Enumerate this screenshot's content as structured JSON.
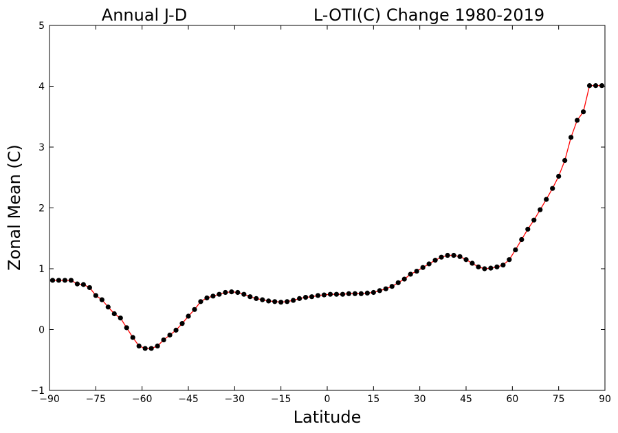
{
  "chart_data": {
    "type": "line",
    "title_left": "Annual J-D",
    "title_right": "L-OTI(C) Change 1980-2019",
    "xlabel": "Latitude",
    "ylabel": "Zonal Mean (C)",
    "xlim": [
      -90,
      90
    ],
    "ylim": [
      -1,
      5
    ],
    "xticks": [
      -90,
      -75,
      -60,
      -45,
      -30,
      -15,
      0,
      15,
      30,
      45,
      60,
      75,
      90
    ],
    "xtick_labels": [
      "−90",
      "−75",
      "−60",
      "−45",
      "−30",
      "−15",
      "0",
      "15",
      "30",
      "45",
      "60",
      "75",
      "90"
    ],
    "yticks": [
      -1,
      0,
      1,
      2,
      3,
      4,
      5
    ],
    "ytick_labels": [
      "−1",
      "0",
      "1",
      "2",
      "3",
      "4",
      "5"
    ],
    "grid": false,
    "line_color": "#ff0000",
    "marker_color": "#000000",
    "series": [
      {
        "x": [
          -89,
          -87,
          -85,
          -83,
          -81,
          -79,
          -77,
          -75,
          -73,
          -71,
          -69,
          -67,
          -65,
          -63,
          -61,
          -59,
          -57,
          -55,
          -53,
          -51,
          -49,
          -47,
          -45,
          -43,
          -41,
          -39,
          -37,
          -35,
          -33,
          -31,
          -29,
          -27,
          -25,
          -23,
          -21,
          -19,
          -17,
          -15,
          -13,
          -11,
          -9,
          -7,
          -5,
          -3,
          -1,
          1,
          3,
          5,
          7,
          9,
          11,
          13,
          15,
          17,
          19,
          21,
          23,
          25,
          27,
          29,
          31,
          33,
          35,
          37,
          39,
          41,
          43,
          45,
          47,
          49,
          51,
          53,
          55,
          57,
          59,
          61,
          63,
          65,
          67,
          69,
          71,
          73,
          75,
          77,
          79,
          81,
          83,
          85,
          87,
          89
        ],
        "y": [
          0.81,
          0.81,
          0.81,
          0.81,
          0.75,
          0.74,
          0.69,
          0.56,
          0.49,
          0.37,
          0.26,
          0.19,
          0.03,
          -0.13,
          -0.27,
          -0.31,
          -0.31,
          -0.27,
          -0.17,
          -0.09,
          -0.01,
          0.1,
          0.22,
          0.33,
          0.46,
          0.52,
          0.55,
          0.58,
          0.61,
          0.62,
          0.61,
          0.58,
          0.54,
          0.51,
          0.49,
          0.47,
          0.46,
          0.45,
          0.46,
          0.48,
          0.51,
          0.53,
          0.54,
          0.56,
          0.57,
          0.58,
          0.58,
          0.58,
          0.59,
          0.59,
          0.59,
          0.6,
          0.61,
          0.64,
          0.67,
          0.71,
          0.77,
          0.83,
          0.91,
          0.96,
          1.02,
          1.08,
          1.14,
          1.19,
          1.22,
          1.22,
          1.2,
          1.15,
          1.09,
          1.03,
          1.0,
          1.01,
          1.03,
          1.06,
          1.15,
          1.31,
          1.48,
          1.65,
          1.8,
          1.97,
          2.14,
          2.32,
          2.52,
          2.78,
          3.16,
          3.44,
          3.58,
          4.01,
          4.01,
          4.01
        ]
      }
    ]
  }
}
